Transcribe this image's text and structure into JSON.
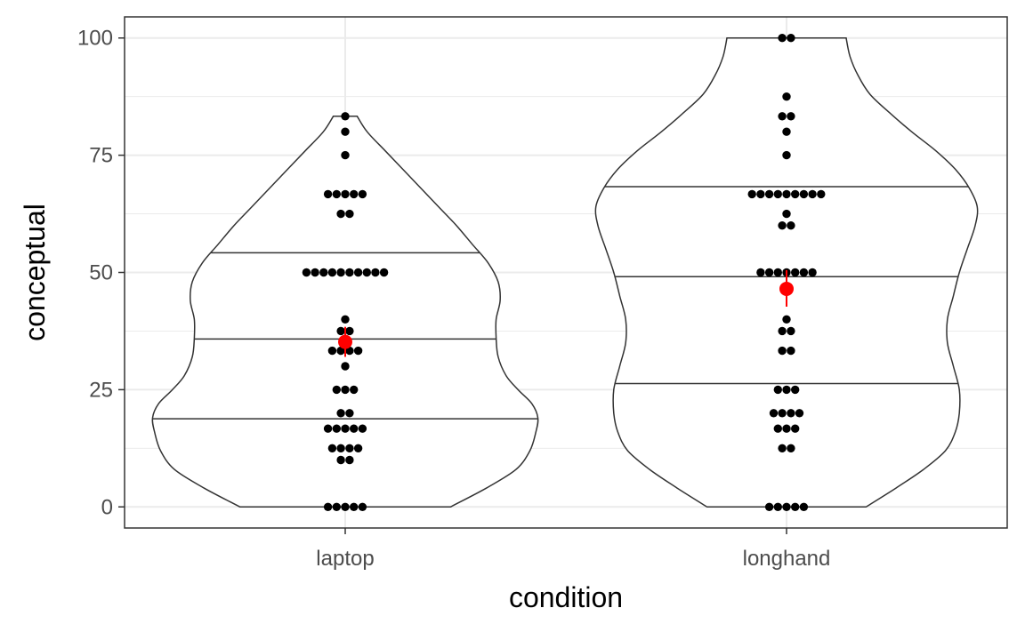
{
  "chart_data": {
    "type": "violin-dotplot",
    "xlabel": "condition",
    "ylabel": "conceptual",
    "categories": [
      "laptop",
      "longhand"
    ],
    "ylim": [
      -4.5,
      104.5
    ],
    "y_ticks": [
      0,
      25,
      50,
      75,
      100
    ],
    "grid": true,
    "theme": "bw",
    "colors": {
      "points": "#000000",
      "mean": "#ff0000",
      "violin_line": "#333333",
      "grid": "#ebebeb",
      "panel_border": "#333333"
    },
    "groups": [
      {
        "name": "laptop",
        "quantiles": [
          18.8,
          35.8,
          54.2
        ],
        "mean": 35.2,
        "mean_ci": [
          32.0,
          38.4
        ],
        "violin_profile": [
          [
            0,
            0.53
          ],
          [
            4,
            0.71
          ],
          [
            8,
            0.86
          ],
          [
            12,
            0.93
          ],
          [
            16,
            0.96
          ],
          [
            19,
            0.97
          ],
          [
            22,
            0.94
          ],
          [
            25,
            0.87
          ],
          [
            28,
            0.81
          ],
          [
            32,
            0.77
          ],
          [
            36,
            0.76
          ],
          [
            40,
            0.76
          ],
          [
            44,
            0.78
          ],
          [
            48,
            0.77
          ],
          [
            52,
            0.72
          ],
          [
            56,
            0.64
          ],
          [
            60,
            0.56
          ],
          [
            64,
            0.47
          ],
          [
            68,
            0.38
          ],
          [
            72,
            0.29
          ],
          [
            76,
            0.2
          ],
          [
            80,
            0.11
          ],
          [
            83.3,
            0.06
          ]
        ],
        "points": [
          {
            "y": 83.3,
            "n": 1
          },
          {
            "y": 80,
            "n": 1
          },
          {
            "y": 75,
            "n": 1
          },
          {
            "y": 66.7,
            "n": 5
          },
          {
            "y": 62.5,
            "n": 2
          },
          {
            "y": 50,
            "n": 10
          },
          {
            "y": 40,
            "n": 1
          },
          {
            "y": 37.5,
            "n": 2
          },
          {
            "y": 33.3,
            "n": 4
          },
          {
            "y": 30,
            "n": 1
          },
          {
            "y": 25,
            "n": 3
          },
          {
            "y": 20,
            "n": 2
          },
          {
            "y": 16.7,
            "n": 5
          },
          {
            "y": 12.5,
            "n": 4
          },
          {
            "y": 10,
            "n": 2
          },
          {
            "y": 0,
            "n": 5
          }
        ]
      },
      {
        "name": "longhand",
        "quantiles": [
          26.3,
          49.1,
          68.3
        ],
        "mean": 46.5,
        "mean_ci": [
          42.7,
          50.5
        ],
        "violin_profile": [
          [
            0,
            0.4
          ],
          [
            4,
            0.55
          ],
          [
            8,
            0.69
          ],
          [
            12,
            0.8
          ],
          [
            16,
            0.85
          ],
          [
            20,
            0.87
          ],
          [
            25,
            0.87
          ],
          [
            30,
            0.84
          ],
          [
            35,
            0.81
          ],
          [
            40,
            0.81
          ],
          [
            45,
            0.84
          ],
          [
            50,
            0.87
          ],
          [
            55,
            0.91
          ],
          [
            60,
            0.95
          ],
          [
            64,
            0.96
          ],
          [
            68,
            0.92
          ],
          [
            72,
            0.85
          ],
          [
            76,
            0.75
          ],
          [
            80,
            0.63
          ],
          [
            84,
            0.52
          ],
          [
            88,
            0.42
          ],
          [
            92,
            0.36
          ],
          [
            96,
            0.32
          ],
          [
            100,
            0.3
          ]
        ],
        "points": [
          {
            "y": 100,
            "n": 2
          },
          {
            "y": 87.5,
            "n": 1
          },
          {
            "y": 83.3,
            "n": 2
          },
          {
            "y": 80,
            "n": 1
          },
          {
            "y": 75,
            "n": 1
          },
          {
            "y": 66.7,
            "n": 9
          },
          {
            "y": 62.5,
            "n": 1
          },
          {
            "y": 60,
            "n": 2
          },
          {
            "y": 50,
            "n": 7
          },
          {
            "y": 40,
            "n": 1
          },
          {
            "y": 37.5,
            "n": 2
          },
          {
            "y": 33.3,
            "n": 2
          },
          {
            "y": 25,
            "n": 3
          },
          {
            "y": 20,
            "n": 4
          },
          {
            "y": 16.7,
            "n": 3
          },
          {
            "y": 12.5,
            "n": 2
          },
          {
            "y": 0,
            "n": 5
          }
        ]
      }
    ]
  }
}
